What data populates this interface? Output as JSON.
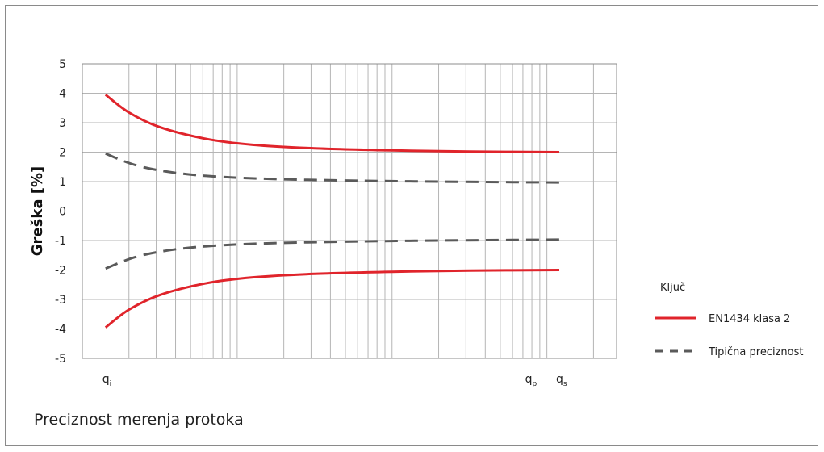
{
  "chart_data": {
    "type": "line",
    "title": "",
    "caption": "Preciznost merenja protoka",
    "ylabel": "Greška [%]",
    "xlabel": "",
    "ylim": [
      -5,
      5
    ],
    "yticks": [
      "5",
      "4",
      "3",
      "2",
      "1",
      "0",
      "-1",
      "-2",
      "-3",
      "-4",
      "-5"
    ],
    "x_scale": "log",
    "xlim_decades": [
      0,
      3.45
    ],
    "x_markers": [
      {
        "base": "q",
        "sub": "i",
        "x": 0.15
      },
      {
        "base": "q",
        "sub": "p",
        "x": 2.88
      },
      {
        "base": "q",
        "sub": "s",
        "x": 3.08
      }
    ],
    "legend": {
      "title": "Ključ",
      "position": "right",
      "entries": [
        {
          "label": "EN1434 klasa 2",
          "style": "solid",
          "color": "#e0242b"
        },
        {
          "label": "Tipična preciznost",
          "style": "dashed",
          "color": "#5a5a5a"
        }
      ]
    },
    "series": [
      {
        "name": "EN1434 klasa 2",
        "style": "solid",
        "color": "#e0242b",
        "band": "upper",
        "x": [
          0.15,
          0.3,
          0.5,
          0.8,
          1.1,
          1.5,
          2.0,
          2.5,
          3.08
        ],
        "y": [
          3.95,
          3.35,
          2.85,
          2.45,
          2.25,
          2.13,
          2.06,
          2.02,
          2.0
        ]
      },
      {
        "name": "EN1434 klasa 2",
        "style": "solid",
        "color": "#e0242b",
        "band": "lower",
        "x": [
          0.15,
          0.3,
          0.5,
          0.8,
          1.1,
          1.5,
          2.0,
          2.5,
          3.08
        ],
        "y": [
          -3.95,
          -3.35,
          -2.85,
          -2.45,
          -2.25,
          -2.13,
          -2.06,
          -2.02,
          -2.0
        ]
      },
      {
        "name": "Tipična preciznost",
        "style": "dashed",
        "color": "#5a5a5a",
        "band": "upper",
        "x": [
          0.15,
          0.35,
          0.6,
          0.9,
          1.3,
          1.8,
          2.3,
          2.8,
          3.08
        ],
        "y": [
          1.95,
          1.55,
          1.3,
          1.16,
          1.08,
          1.03,
          1.0,
          0.98,
          0.97
        ]
      },
      {
        "name": "Tipična preciznost",
        "style": "dashed",
        "color": "#5a5a5a",
        "band": "lower",
        "x": [
          0.15,
          0.35,
          0.6,
          0.9,
          1.3,
          1.8,
          2.3,
          2.8,
          3.08
        ],
        "y": [
          -1.95,
          -1.55,
          -1.3,
          -1.16,
          -1.08,
          -1.03,
          -1.0,
          -0.98,
          -0.97
        ]
      }
    ],
    "grid": true
  }
}
